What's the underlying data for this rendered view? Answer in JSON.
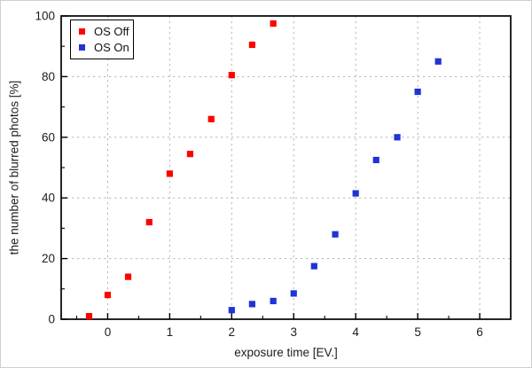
{
  "chart_data": {
    "type": "scatter",
    "title": "",
    "xlabel": "exposure time [EV.]",
    "ylabel": "the number of blurred photos [%]",
    "xlim": [
      -0.75,
      6.5
    ],
    "ylim": [
      0,
      100
    ],
    "xticks": [
      0,
      1,
      2,
      3,
      4,
      5,
      6
    ],
    "yticks": [
      0,
      20,
      40,
      60,
      80,
      100
    ],
    "x_minor_step": 0.5,
    "y_minor_step": 10,
    "grid": true,
    "legend_position": "top-left",
    "marker": "square",
    "marker_size": 7.2,
    "colors": {
      "grid": "#b5b5b5",
      "axis": "#000000",
      "text": "#1c1c1c",
      "background": "#ffffff"
    },
    "series": [
      {
        "name": "OS Off",
        "color": "#ff0000",
        "points": [
          [
            -0.3,
            1
          ],
          [
            0,
            8
          ],
          [
            0.33,
            14
          ],
          [
            0.67,
            32
          ],
          [
            1,
            48
          ],
          [
            1.33,
            54.5
          ],
          [
            1.67,
            66
          ],
          [
            2,
            80.5
          ],
          [
            2.33,
            90.5
          ],
          [
            2.67,
            97.5
          ]
        ]
      },
      {
        "name": "OS On",
        "color": "#2033d6",
        "points": [
          [
            2,
            3
          ],
          [
            2.33,
            5
          ],
          [
            2.67,
            6
          ],
          [
            3,
            8.5
          ],
          [
            3.33,
            17.5
          ],
          [
            3.67,
            28
          ],
          [
            4,
            41.5
          ],
          [
            4.33,
            52.5
          ],
          [
            4.67,
            60
          ],
          [
            5,
            75
          ],
          [
            5.33,
            85
          ]
        ]
      }
    ]
  }
}
